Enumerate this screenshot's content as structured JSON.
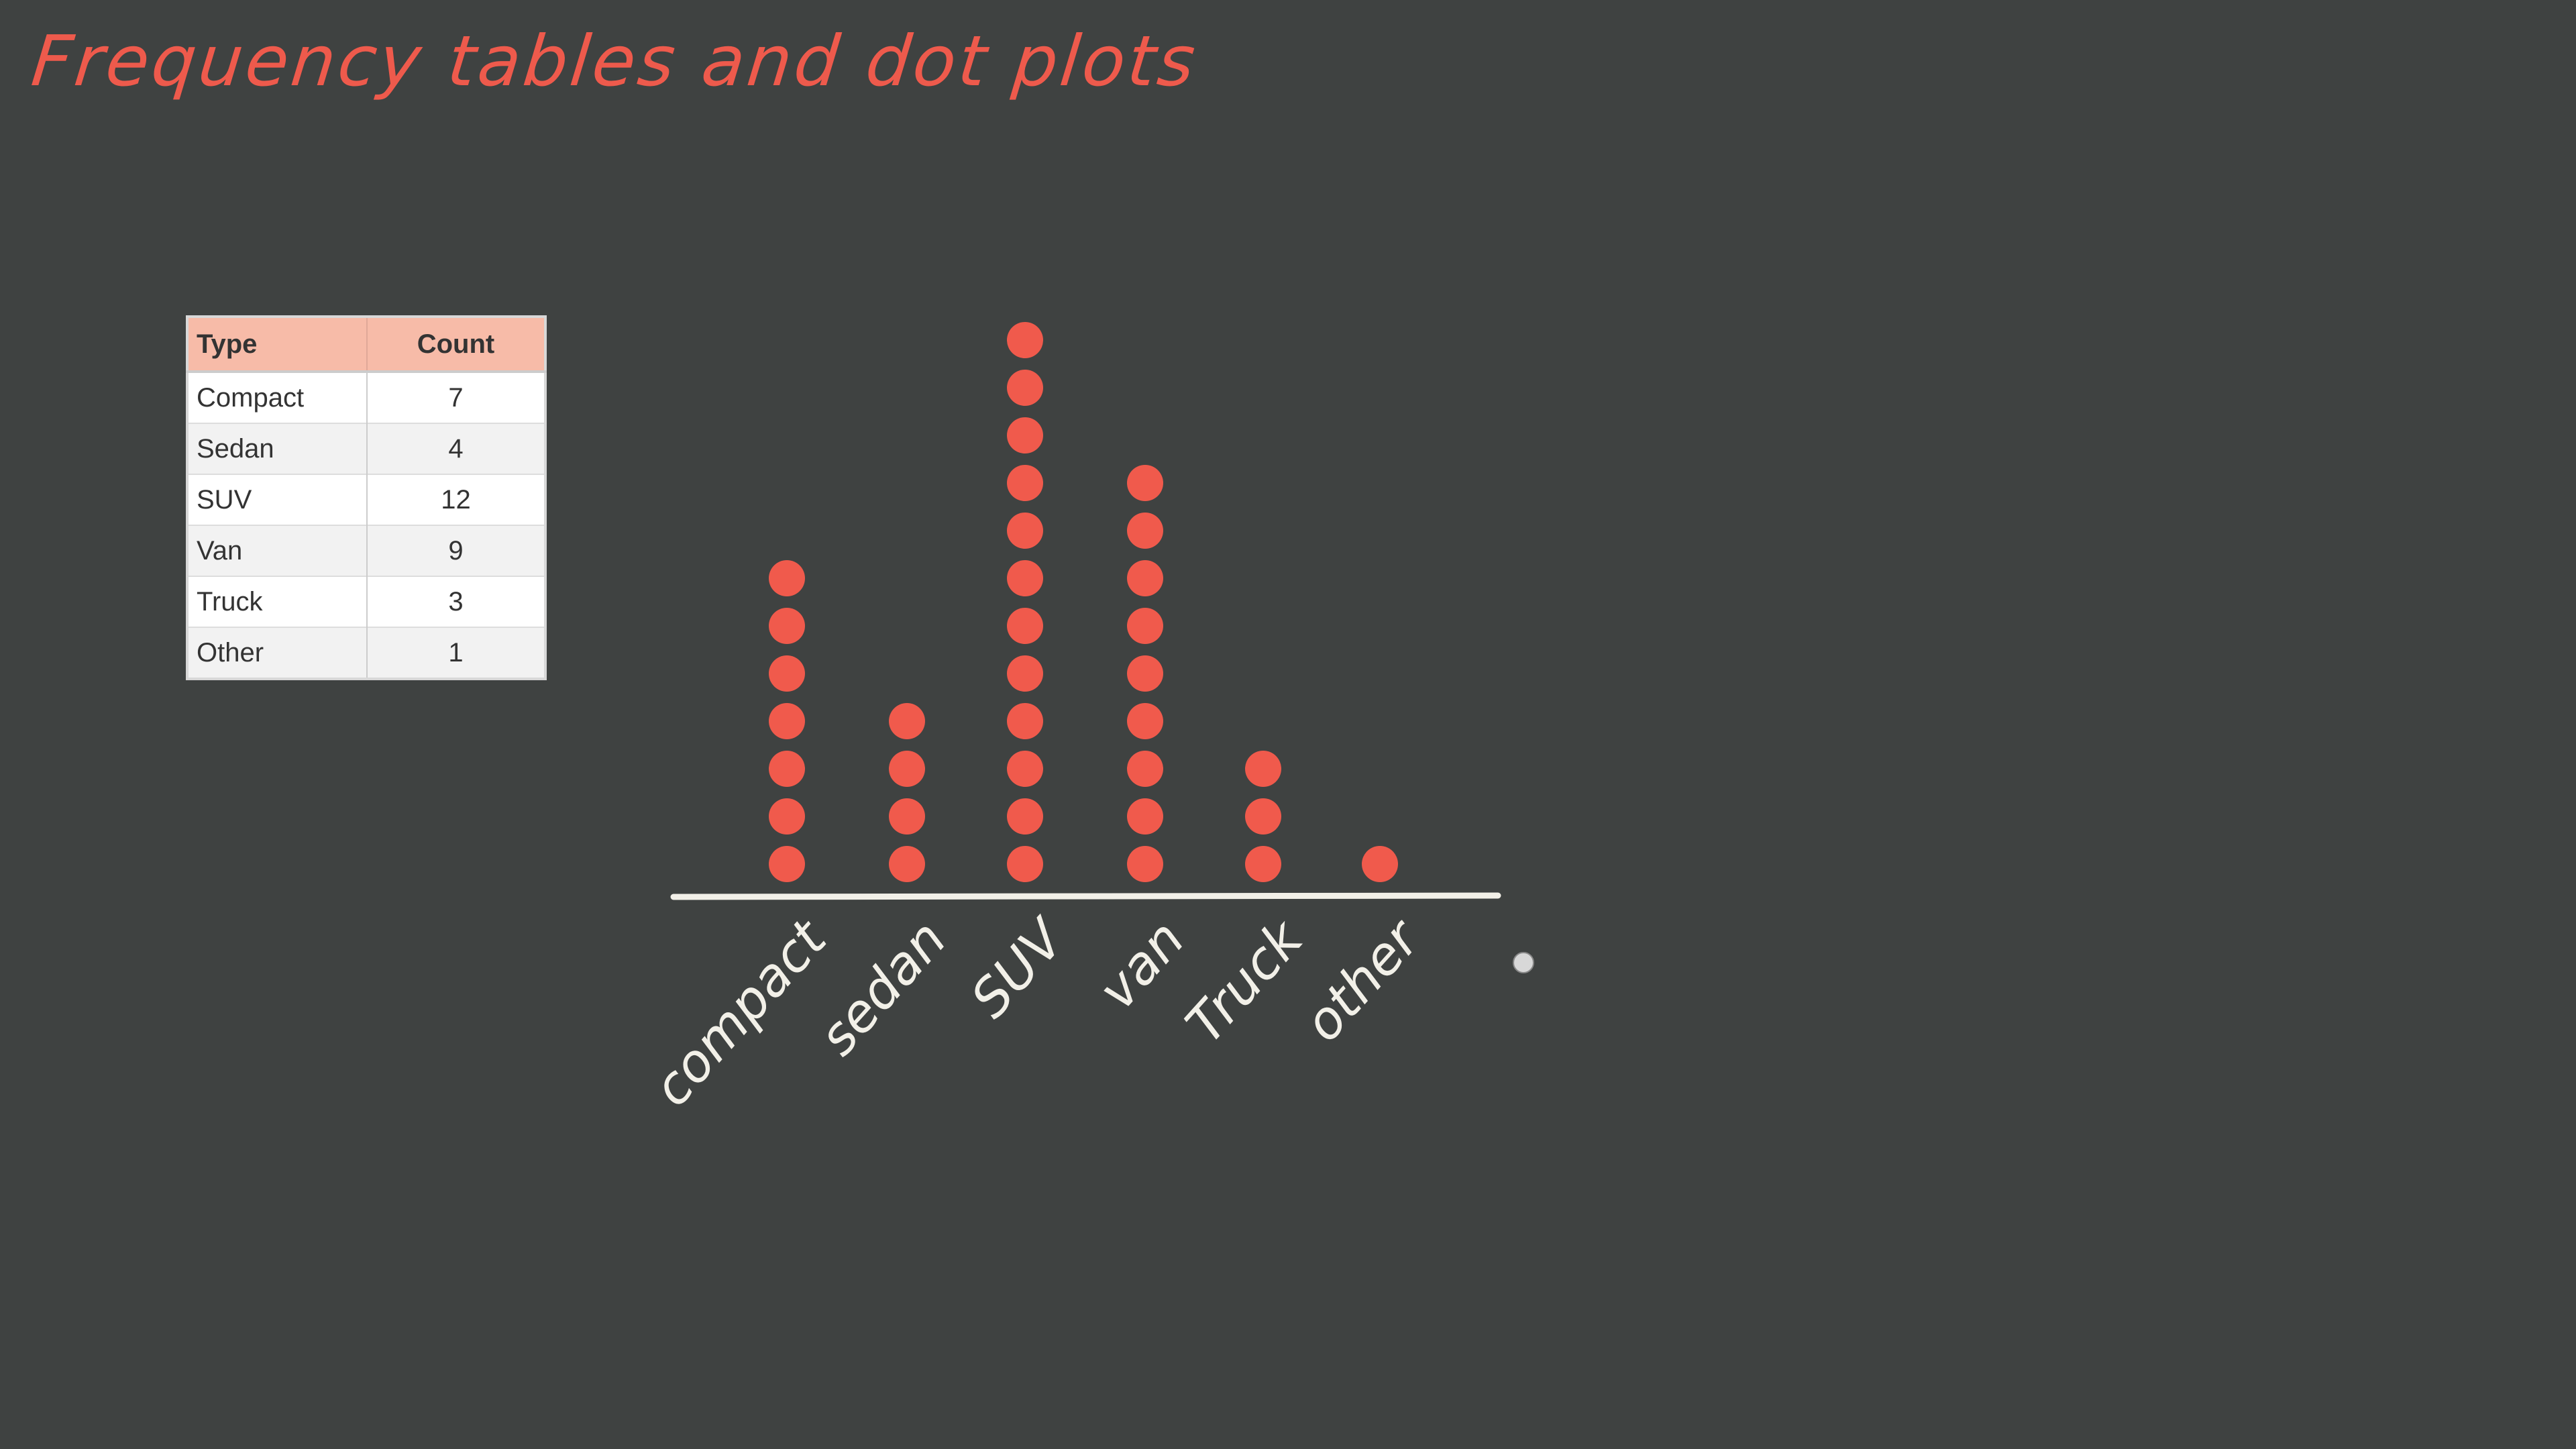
{
  "title": "Frequency tables and dot plots",
  "table": {
    "headers": [
      "Type",
      "Count"
    ],
    "rows": [
      [
        "Compact",
        "7"
      ],
      [
        "Sedan",
        "4"
      ],
      [
        "SUV",
        "12"
      ],
      [
        "Van",
        "9"
      ],
      [
        "Truck",
        "3"
      ],
      [
        "Other",
        "1"
      ]
    ]
  },
  "chart_data": {
    "type": "dot",
    "categories": [
      "compact",
      "sedan",
      "SUV",
      "van",
      "Truck",
      "other"
    ],
    "values": [
      7,
      4,
      12,
      9,
      3,
      1
    ],
    "dot_color": "#f05a4c",
    "axis_color": "#f2f0e8"
  },
  "colors": {
    "background": "#3f4241",
    "title": "#ee5a4c",
    "header": "#f7bba8"
  }
}
